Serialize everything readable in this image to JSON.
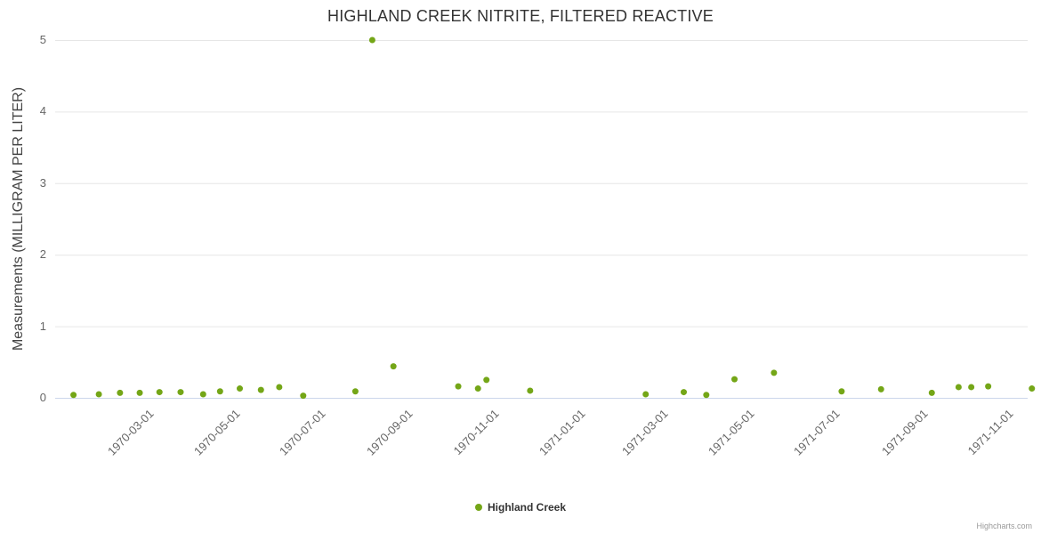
{
  "credits": "Highcharts.com",
  "colors": {
    "series": "#74a617",
    "grid": "#e6e6e6",
    "axis_line": "#ccd6eb",
    "tick_label": "#666666",
    "title": "#333333",
    "axis_title": "#444444",
    "credits": "#999999",
    "background": "#ffffff"
  },
  "chart_data": {
    "type": "scatter",
    "title": "HIGHLAND CREEK NITRITE, FILTERED REACTIVE",
    "xlabel": "",
    "ylabel": "Measurements (MILLIGRAM PER LITER)",
    "ylim": [
      0,
      5
    ],
    "xlim": [
      "1969-12-26",
      "1971-11-16"
    ],
    "y_ticks": [
      0,
      1,
      2,
      3,
      4,
      5
    ],
    "x_ticks": [
      "1970-03-01",
      "1970-05-01",
      "1970-07-01",
      "1970-09-01",
      "1970-11-01",
      "1971-01-01",
      "1971-03-01",
      "1971-05-01",
      "1971-07-01",
      "1971-09-01",
      "1971-11-01"
    ],
    "grid": "horizontal",
    "legend_position": "bottom-center",
    "series": [
      {
        "name": "Highland Creek",
        "color": "#74a617",
        "marker": "circle",
        "points": [
          [
            "1970-01-08",
            0.04
          ],
          [
            "1970-01-26",
            0.05
          ],
          [
            "1970-02-10",
            0.07
          ],
          [
            "1970-02-24",
            0.07
          ],
          [
            "1970-03-10",
            0.08
          ],
          [
            "1970-03-25",
            0.08
          ],
          [
            "1970-04-10",
            0.05
          ],
          [
            "1970-04-22",
            0.09
          ],
          [
            "1970-05-06",
            0.13
          ],
          [
            "1970-05-21",
            0.11
          ],
          [
            "1970-06-03",
            0.15
          ],
          [
            "1970-06-20",
            0.03
          ],
          [
            "1970-07-27",
            0.09
          ],
          [
            "1970-08-08",
            5.0
          ],
          [
            "1970-08-23",
            0.44
          ],
          [
            "1970-10-08",
            0.16
          ],
          [
            "1970-10-22",
            0.13
          ],
          [
            "1970-10-28",
            0.25
          ],
          [
            "1970-11-28",
            0.1
          ],
          [
            "1971-02-18",
            0.05
          ],
          [
            "1971-03-17",
            0.08
          ],
          [
            "1971-04-02",
            0.04
          ],
          [
            "1971-04-22",
            0.26
          ],
          [
            "1971-05-20",
            0.35
          ],
          [
            "1971-07-07",
            0.09
          ],
          [
            "1971-08-04",
            0.12
          ],
          [
            "1971-09-09",
            0.07
          ],
          [
            "1971-09-28",
            0.15
          ],
          [
            "1971-10-07",
            0.15
          ],
          [
            "1971-10-19",
            0.16
          ],
          [
            "1971-11-19",
            0.13
          ]
        ]
      }
    ]
  }
}
